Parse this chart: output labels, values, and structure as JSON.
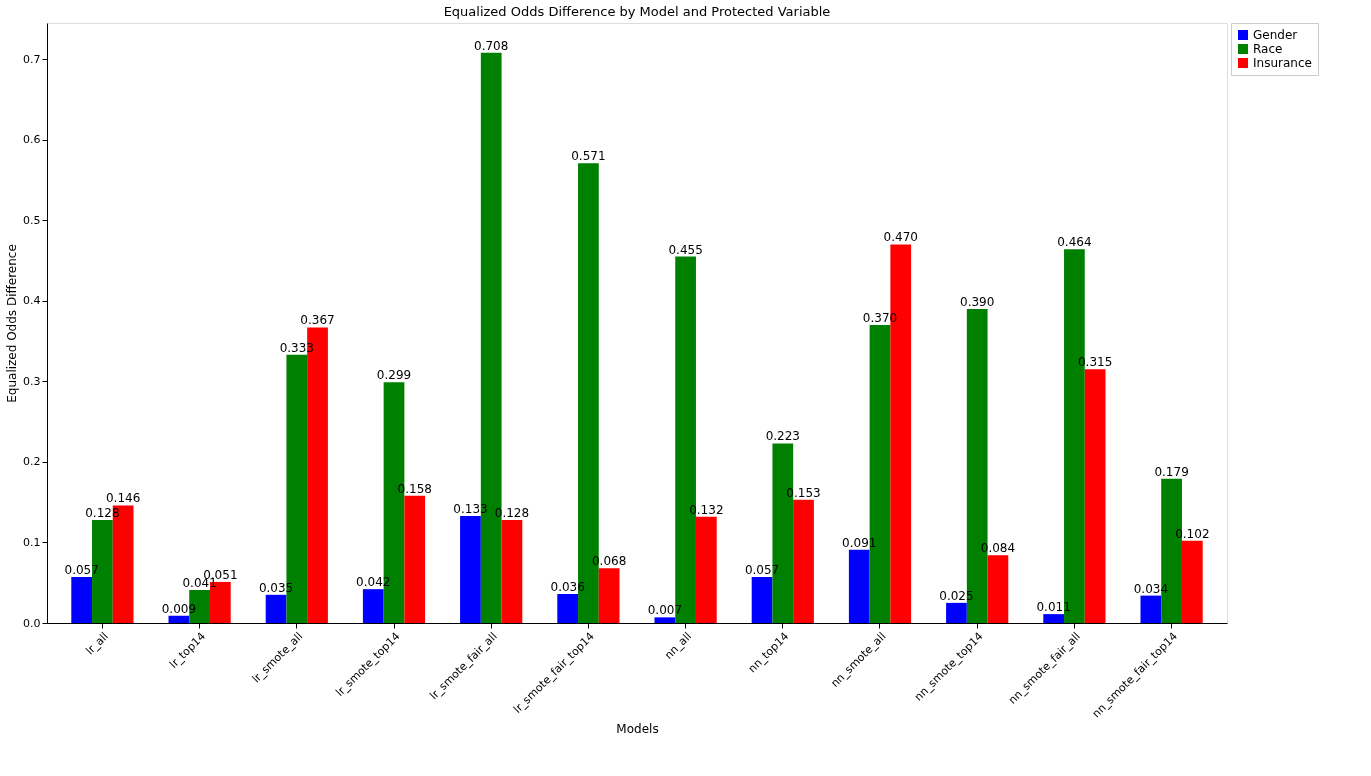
{
  "chart_data": {
    "type": "bar",
    "title": "Equalized Odds Difference by Model and Protected Variable",
    "xlabel": "Models",
    "ylabel": "Equalized Odds Difference",
    "categories": [
      "lr_all",
      "lr_top14",
      "lr_smote_all",
      "lr_smote_top14",
      "lr_smote_fair_all",
      "lr_smote_fair_top14",
      "nn_all",
      "nn_top14",
      "nn_smote_all",
      "nn_smote_top14",
      "nn_smote_fair_all",
      "nn_smote_fair_top14"
    ],
    "series": [
      {
        "name": "Gender",
        "color": "#0000ff",
        "values": [
          0.057,
          0.009,
          0.035,
          0.042,
          0.133,
          0.036,
          0.007,
          0.057,
          0.091,
          0.025,
          0.011,
          0.034
        ],
        "value_labels": [
          "0.057",
          "0.009",
          "0.035",
          "0.042",
          "0.133",
          "0.036",
          "0.007",
          "0.057",
          "0.091",
          "0.025",
          "0.011",
          "0.034"
        ]
      },
      {
        "name": "Race",
        "color": "#008000",
        "values": [
          0.128,
          0.041,
          0.333,
          0.299,
          0.708,
          0.571,
          0.455,
          0.223,
          0.37,
          0.39,
          0.464,
          0.179
        ],
        "value_labels": [
          "0.128",
          "0.041",
          "0.333",
          "0.299",
          "0.708",
          "0.571",
          "0.455",
          "0.223",
          "0.370",
          "0.390",
          "0.464",
          "0.179"
        ]
      },
      {
        "name": "Insurance",
        "color": "#ff0000",
        "values": [
          0.146,
          0.051,
          0.367,
          0.158,
          0.128,
          0.068,
          0.132,
          0.153,
          0.47,
          0.084,
          0.315,
          0.102
        ],
        "value_labels": [
          "0.146",
          "0.051",
          "0.367",
          "0.158",
          "0.128",
          "0.068",
          "0.132",
          "0.153",
          "0.470",
          "0.084",
          "0.315",
          "0.102"
        ]
      }
    ],
    "ylim": [
      0,
      0.745
    ],
    "yticks": [
      {
        "value": 0,
        "label": "0.0"
      },
      0.1,
      0.2,
      0.3,
      0.4,
      0.5,
      0.6,
      0.7
    ],
    "grid": false,
    "legend": "top right"
  }
}
